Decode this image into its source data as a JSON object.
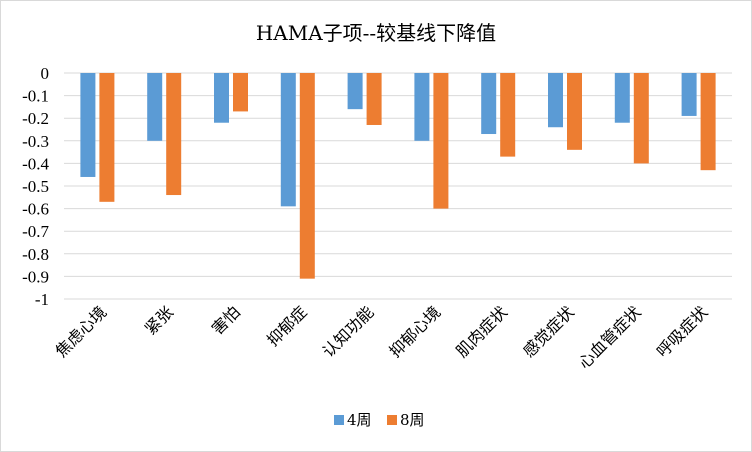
{
  "chart_data": {
    "type": "bar",
    "title": "HAMA子项--较基线下降值",
    "xlabel": "",
    "ylabel": "",
    "ylim": [
      -1,
      0
    ],
    "yticks": [
      0,
      -0.1,
      -0.2,
      -0.3,
      -0.4,
      -0.5,
      -0.6,
      -0.7,
      -0.8,
      -0.9,
      -1
    ],
    "ytick_labels": [
      "0",
      "-0.1",
      "-0.2",
      "-0.3",
      "-0.4",
      "-0.5",
      "-0.6",
      "-0.7",
      "-0.8",
      "-0.9",
      "-1"
    ],
    "grid": true,
    "legend_position": "bottom",
    "categories": [
      "焦虑心境",
      "紧张",
      "害怕",
      "抑郁症",
      "认知功能",
      "抑郁心境",
      "肌肉症状",
      "感觉症状",
      "心血管症状",
      "呼吸症状"
    ],
    "series": [
      {
        "name": "4周",
        "color": "#5b9bd5",
        "values": [
          -0.46,
          -0.3,
          -0.22,
          -0.59,
          -0.16,
          -0.3,
          -0.27,
          -0.24,
          -0.22,
          -0.19
        ]
      },
      {
        "name": "8周",
        "color": "#ed7d31",
        "values": [
          -0.57,
          -0.54,
          -0.17,
          -0.91,
          -0.23,
          -0.6,
          -0.37,
          -0.34,
          -0.4,
          -0.43
        ]
      }
    ]
  }
}
